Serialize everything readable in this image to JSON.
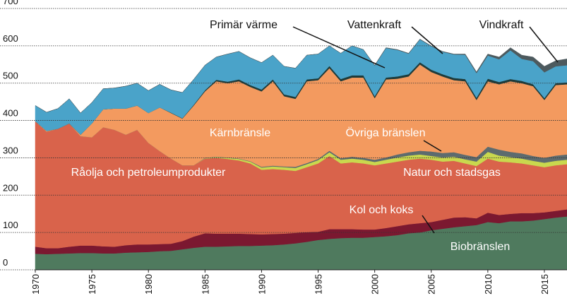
{
  "chart_data": {
    "type": "stacked-area",
    "x": [
      1970,
      1971,
      1972,
      1973,
      1974,
      1975,
      1976,
      1977,
      1978,
      1979,
      1980,
      1981,
      1982,
      1983,
      1984,
      1985,
      1986,
      1987,
      1988,
      1989,
      1990,
      1991,
      1992,
      1993,
      1994,
      1995,
      1996,
      1997,
      1998,
      1999,
      2000,
      2001,
      2002,
      2003,
      2004,
      2005,
      2006,
      2007,
      2008,
      2009,
      2010,
      2011,
      2012,
      2013,
      2014,
      2015,
      2016,
      2017
    ],
    "xlim": [
      1970,
      2017
    ],
    "xticks": [
      1970,
      1975,
      1980,
      1985,
      1990,
      1995,
      2000,
      2005,
      2010,
      2015
    ],
    "ylim": [
      0,
      700
    ],
    "yticks": [
      0,
      100,
      200,
      300,
      400,
      500,
      600,
      700
    ],
    "grid": true,
    "series": [
      {
        "name": "Biobränslen",
        "color": "#4f7a5e",
        "values": [
          43,
          42,
          43,
          44,
          45,
          45,
          44,
          44,
          46,
          47,
          48,
          50,
          51,
          55,
          59,
          62,
          62,
          63,
          64,
          64,
          65,
          66,
          68,
          71,
          75,
          80,
          83,
          85,
          86,
          86,
          88,
          90,
          93,
          98,
          100,
          106,
          110,
          114,
          117,
          120,
          128,
          125,
          130,
          130,
          132,
          136,
          140,
          143
        ]
      },
      {
        "name": "Kol och koks",
        "color": "#7b1830",
        "values": [
          19,
          16,
          15,
          18,
          20,
          20,
          19,
          18,
          20,
          21,
          20,
          19,
          19,
          22,
          30,
          36,
          35,
          34,
          33,
          32,
          30,
          30,
          29,
          28,
          26,
          22,
          26,
          24,
          23,
          22,
          20,
          22,
          24,
          24,
          25,
          22,
          24,
          26,
          24,
          18,
          25,
          22,
          20,
          22,
          20,
          18,
          18,
          19
        ]
      },
      {
        "name": "Råolja och petroleumprodukter",
        "color": "#d9634b",
        "values": [
          336,
          312,
          320,
          330,
          293,
          290,
          319,
          313,
          296,
          307,
          272,
          249,
          228,
          203,
          191,
          200,
          203,
          200,
          196,
          189,
          173,
          174,
          171,
          166,
          174,
          183,
          196,
          176,
          179,
          177,
          172,
          173,
          173,
          173,
          173,
          167,
          156,
          152,
          144,
          140,
          145,
          143,
          138,
          133,
          128,
          121,
          122,
          121
        ]
      },
      {
        "name": "Natur  och stadsgas",
        "color": "#c9d84e",
        "values": [
          0,
          0,
          0,
          0,
          0,
          0,
          0,
          0,
          0,
          0,
          0,
          0,
          0,
          0,
          0,
          1,
          2,
          3,
          4,
          5,
          6,
          7,
          7,
          8,
          8,
          9,
          10,
          10,
          10,
          10,
          9,
          10,
          11,
          11,
          11,
          10,
          11,
          11,
          11,
          12,
          18,
          16,
          14,
          13,
          12,
          12,
          12,
          12
        ]
      },
      {
        "name": "Övriga bränslen",
        "color": "#5d6b6e",
        "values": [
          0,
          0,
          0,
          0,
          0,
          0,
          0,
          0,
          0,
          0,
          0,
          0,
          0,
          0,
          0,
          1,
          1,
          1,
          1,
          1,
          2,
          2,
          2,
          3,
          3,
          3,
          4,
          4,
          5,
          5,
          6,
          6,
          8,
          9,
          10,
          12,
          12,
          12,
          12,
          12,
          14,
          16,
          14,
          14,
          13,
          13,
          14,
          14
        ]
      },
      {
        "name": "Kärnbränsle",
        "color": "#f39a5f",
        "values": [
          0,
          2,
          0,
          0,
          4,
          37,
          48,
          57,
          70,
          65,
          80,
          117,
          122,
          125,
          160,
          178,
          202,
          199,
          207,
          199,
          202,
          226,
          188,
          182,
          219,
          211,
          221,
          206,
          212,
          215,
          165,
          209,
          203,
          203,
          231,
          213,
          205,
          193,
          197,
          153,
          175,
          175,
          189,
          188,
          187,
          155,
          189,
          188
        ]
      },
      {
        "name": "Primär värme",
        "color": "#1e3b3a",
        "values": [
          0,
          0,
          0,
          0,
          0,
          0,
          0,
          0,
          0,
          0,
          0,
          0,
          1,
          1,
          2,
          3,
          4,
          4,
          5,
          5,
          5,
          5,
          5,
          5,
          5,
          5,
          6,
          6,
          6,
          6,
          5,
          5,
          6,
          6,
          6,
          6,
          6,
          6,
          6,
          6,
          7,
          6,
          6,
          6,
          5,
          5,
          5,
          5
        ]
      },
      {
        "name": "Vattenkraft",
        "color": "#4aa3c9",
        "values": [
          42,
          50,
          54,
          66,
          58,
          56,
          55,
          55,
          60,
          60,
          60,
          62,
          61,
          69,
          68,
          67,
          61,
          74,
          75,
          73,
          72,
          65,
          75,
          77,
          65,
          65,
          54,
          69,
          79,
          69,
          82,
          79,
          71,
          55,
          61,
          63,
          60,
          63,
          65,
          66,
          62,
          61,
          77,
          59,
          62,
          69,
          45,
          46
        ]
      },
      {
        "name": "Vindkraft",
        "color": "#4d5a5e",
        "values": [
          0,
          0,
          0,
          0,
          0,
          0,
          0,
          0,
          0,
          0,
          0,
          0,
          0,
          0,
          0,
          0,
          0,
          0,
          0,
          0,
          0,
          0,
          0,
          0,
          0,
          0,
          0,
          0,
          0,
          0,
          1,
          1,
          1,
          1,
          1,
          1,
          1,
          1,
          2,
          3,
          4,
          6,
          7,
          10,
          11,
          16,
          15,
          17
        ]
      }
    ]
  }
}
